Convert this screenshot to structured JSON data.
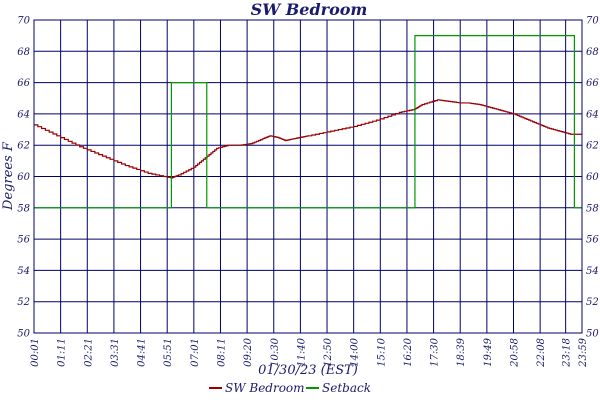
{
  "chart_data": {
    "type": "line",
    "title": "SW Bedroom",
    "xlabel": "01/30/23 (EST)",
    "ylabel": "Degrees F",
    "ylim": [
      50,
      70
    ],
    "yticks": [
      50,
      52,
      54,
      56,
      58,
      60,
      62,
      64,
      66,
      68,
      70
    ],
    "xlim": [
      0,
      1440
    ],
    "x_tick_labels": [
      "00:01",
      "01:11",
      "02:21",
      "03:31",
      "04:41",
      "05:51",
      "07:01",
      "08:11",
      "09:20",
      "10:30",
      "11:40",
      "12:50",
      "14:00",
      "15:10",
      "16:20",
      "17:30",
      "18:39",
      "19:49",
      "20:58",
      "22:08",
      "23:18",
      "23:59"
    ],
    "grid": true,
    "legend_placement": "bottom-center",
    "series": [
      {
        "name": "SW Bedroom",
        "color": "#990000",
        "x": [
          0,
          60,
          120,
          180,
          240,
          300,
          360,
          380,
          420,
          450,
          480,
          510,
          540,
          570,
          600,
          620,
          640,
          660,
          680,
          700,
          720,
          780,
          840,
          900,
          960,
          1000,
          1020,
          1060,
          1090,
          1120,
          1140,
          1170,
          1200,
          1230,
          1260,
          1290,
          1320,
          1350,
          1380,
          1410,
          1440
        ],
        "values": [
          63.3,
          62.6,
          61.9,
          61.3,
          60.7,
          60.2,
          59.9,
          60.1,
          60.6,
          61.2,
          61.8,
          62.0,
          62.0,
          62.1,
          62.4,
          62.6,
          62.5,
          62.3,
          62.4,
          62.5,
          62.6,
          62.9,
          63.2,
          63.6,
          64.1,
          64.3,
          64.6,
          64.9,
          64.8,
          64.7,
          64.7,
          64.6,
          64.4,
          64.2,
          64.0,
          63.7,
          63.4,
          63.1,
          62.9,
          62.7,
          62.7
        ]
      },
      {
        "name": "Setback",
        "color": "#009900",
        "x": [
          0,
          361,
          361,
          454,
          454,
          1001,
          1001,
          1420,
          1420,
          1440
        ],
        "values": [
          58,
          58,
          66,
          66,
          58,
          58,
          69,
          69,
          58,
          58
        ]
      }
    ]
  }
}
